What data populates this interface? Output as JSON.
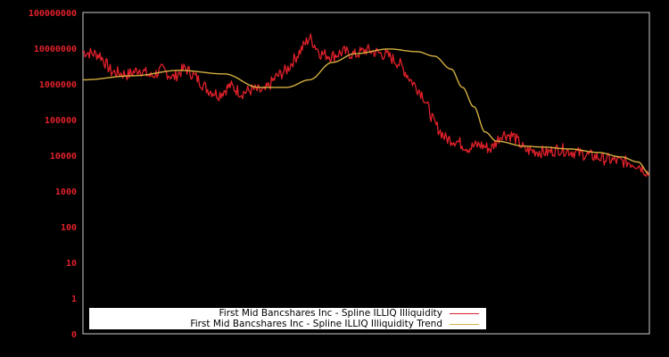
{
  "chart_data": {
    "type": "line",
    "title": "",
    "xlabel": "",
    "ylabel": "",
    "yscale": "log",
    "ylim": [
      0,
      100000000
    ],
    "y_ticks": [
      "0",
      "1",
      "10",
      "100",
      "1000",
      "10000",
      "100000",
      "1000000",
      "10000000",
      "100000000"
    ],
    "x_ticks": [],
    "grid": false,
    "legend_position": "bottom-left inside plot",
    "series": [
      {
        "name": "First Mid Bancshares Inc - Spline ILLIQ Illiquidity",
        "color": "#e0202a",
        "x": [
          0,
          0.03,
          0.05,
          0.08,
          0.1,
          0.12,
          0.14,
          0.16,
          0.18,
          0.2,
          0.22,
          0.24,
          0.26,
          0.28,
          0.3,
          0.32,
          0.34,
          0.36,
          0.38,
          0.4,
          0.42,
          0.44,
          0.46,
          0.48,
          0.5,
          0.52,
          0.54,
          0.56,
          0.58,
          0.6,
          0.62,
          0.64,
          0.66,
          0.68,
          0.7,
          0.72,
          0.74,
          0.76,
          0.78,
          0.8,
          0.82,
          0.84,
          0.86,
          0.88,
          0.9,
          0.92,
          0.94,
          0.96,
          0.98,
          1.0
        ],
        "values": [
          8000000,
          6500000,
          2200000,
          1800000,
          2600000,
          1600000,
          2500000,
          1500000,
          2800000,
          1500000,
          700000,
          500000,
          900000,
          550000,
          700000,
          600000,
          1500000,
          2500000,
          7000000,
          20000000,
          7000000,
          6000000,
          8000000,
          6500000,
          9000000,
          7500000,
          6000000,
          3500000,
          1200000,
          500000,
          80000,
          30000,
          25000,
          16000,
          20000,
          15000,
          40000,
          35000,
          14000,
          13000,
          12000,
          15000,
          13000,
          11000,
          9500,
          8000,
          7000,
          6500,
          5500,
          3000
        ]
      },
      {
        "name": "First Mid Bancshares Inc - Spline ILLIQ Illiquidity Trend",
        "color": "#d4b040",
        "x": [
          0,
          0.09,
          0.17,
          0.25,
          0.31,
          0.36,
          0.4,
          0.44,
          0.48,
          0.54,
          0.59,
          0.62,
          0.65,
          0.67,
          0.69,
          0.71,
          0.73,
          0.78,
          0.81,
          0.86,
          0.91,
          0.95,
          0.98,
          1.0
        ],
        "values": [
          1300000,
          1700000,
          2400000,
          1900000,
          800000,
          800000,
          1300000,
          4000000,
          7000000,
          9500000,
          8000000,
          6000000,
          2600000,
          800000,
          230000,
          45000,
          25000,
          18000,
          17000,
          15000,
          12000,
          9000,
          6500,
          3000
        ]
      }
    ]
  },
  "legend": {
    "items": [
      {
        "label": "First Mid Bancshares Inc - Spline ILLIQ Illiquidity",
        "color": "#e0202a"
      },
      {
        "label": "First Mid Bancshares Inc - Spline ILLIQ Illiquidity Trend",
        "color": "#d4b040"
      }
    ]
  },
  "axis": {
    "frame_color": "#cccccc",
    "tick_color": "#e0202a"
  }
}
